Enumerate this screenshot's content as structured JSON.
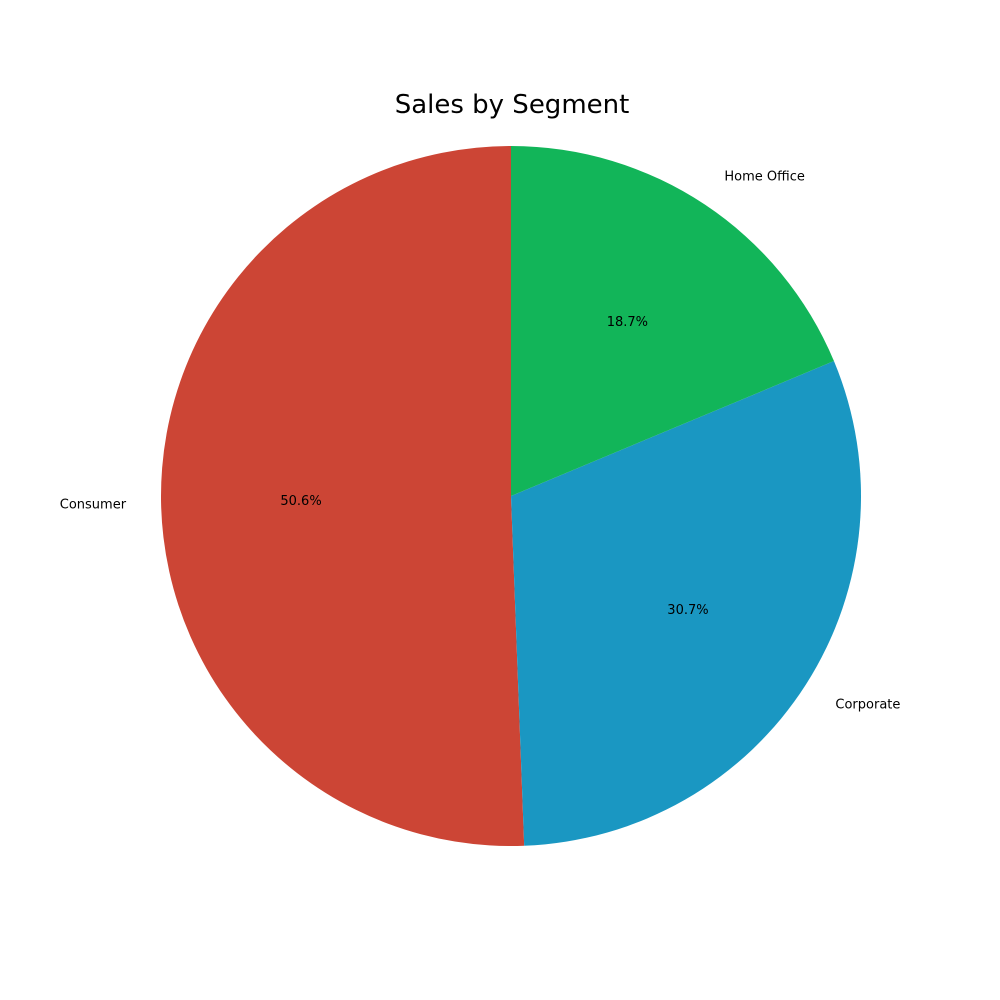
{
  "chart_data": {
    "type": "pie",
    "title": "Sales by Segment",
    "categories": [
      "Consumer",
      "Corporate",
      "Home Office"
    ],
    "values": [
      50.6,
      30.7,
      18.7
    ],
    "percent_labels": [
      "50.6%",
      "30.7%",
      "18.7%"
    ],
    "colors": [
      "#cc4535",
      "#1a97c2",
      "#12b559"
    ],
    "start_angle_deg": 90,
    "direction": "counterclockwise",
    "legend": "none"
  }
}
